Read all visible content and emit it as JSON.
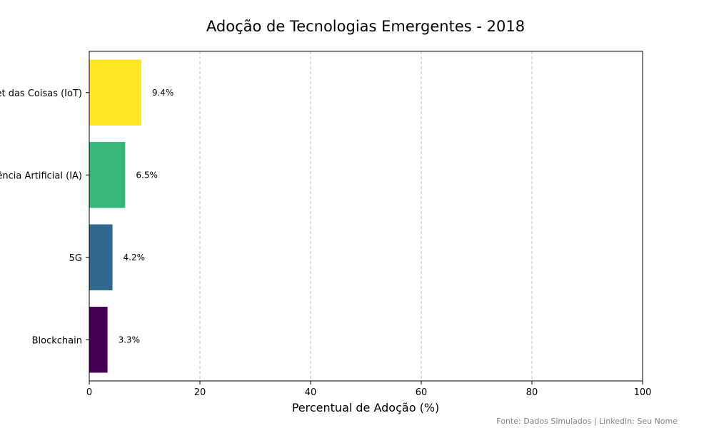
{
  "chart_data": {
    "type": "bar",
    "orientation": "horizontal",
    "title": "Adoção de Tecnologias Emergentes - 2018",
    "xlabel": "Percentual de Adoção (%)",
    "ylabel": "",
    "categories": [
      "Blockchain",
      "5G",
      "Inteligência Artificial (IA)",
      "Internet das Coisas (IoT)"
    ],
    "values": [
      3.3,
      4.2,
      6.5,
      9.4
    ],
    "value_labels": [
      "3.3%",
      "4.2%",
      "6.5%",
      "9.4%"
    ],
    "bar_colors": [
      "#440154",
      "#31688e",
      "#35b779",
      "#fde725"
    ],
    "xlim": [
      0,
      100
    ],
    "xticks": [
      0,
      20,
      40,
      60,
      80,
      100
    ],
    "grid": "x-dashed",
    "legend": "none"
  },
  "footer": {
    "source_note": "Fonte: Dados Simulados | LinkedIn: Seu Nome"
  }
}
